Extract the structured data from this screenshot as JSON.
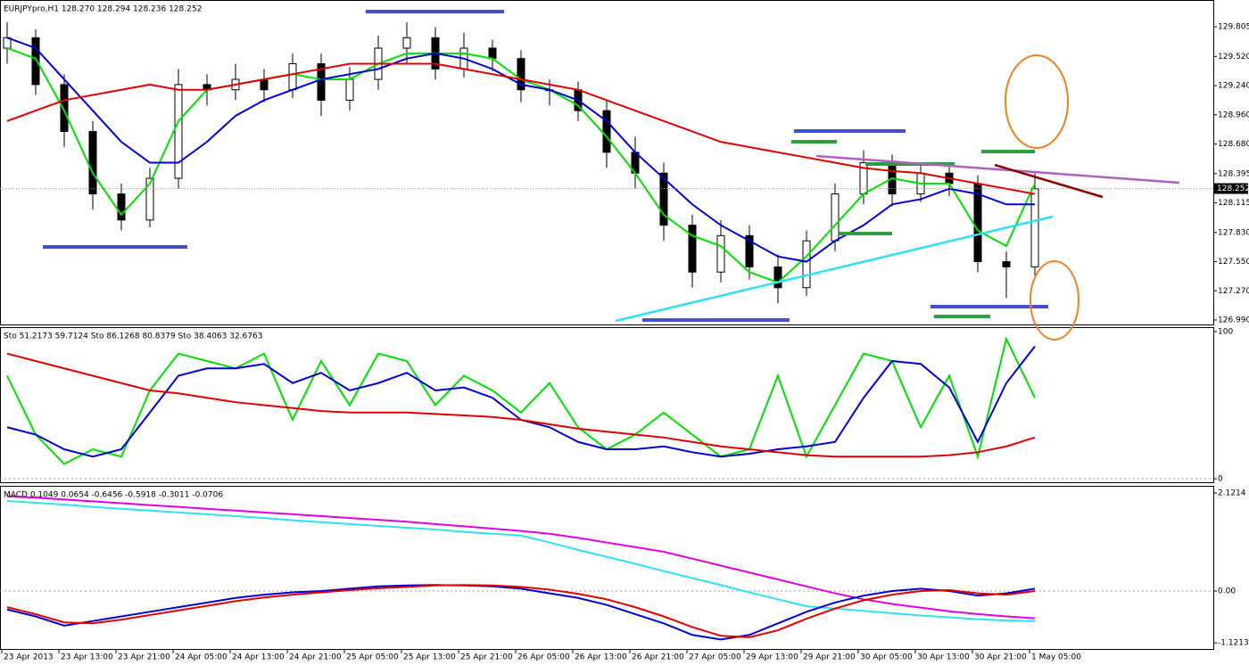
{
  "chart_data": [
    {
      "type": "candlestick",
      "title": "EURJPYpro,H1  128.270 128.294 128.236 128.252",
      "categories": [
        "23 Apr 2013",
        null,
        "23 Apr 13:00",
        null,
        "23 Apr 21:00",
        null,
        "24 Apr 05:00",
        null,
        "24 Apr 13:00",
        null,
        "24 Apr 21:00",
        null,
        "25 Apr 05:00",
        null,
        "25 Apr 13:00",
        null,
        "25 Apr 21:00",
        null,
        "26 Apr 05:00",
        null,
        "26 Apr 13:00",
        null,
        "26 Apr 21:00",
        null,
        "27 Apr 05:00",
        null,
        "29 Apr 13:00",
        null,
        "29 Apr 21:00",
        null,
        "30 Apr 05:00",
        null,
        "30 Apr 13:00",
        null,
        "30 Apr 21:00",
        null,
        "1 May 05:00"
      ],
      "open": [
        129.6,
        129.7,
        129.25,
        128.8,
        128.2,
        127.95,
        128.35,
        129.25,
        129.2,
        129.3,
        129.2,
        129.45,
        129.1,
        129.3,
        129.6,
        129.7,
        129.4,
        129.6,
        129.5,
        129.2,
        129.2,
        129.0,
        128.6,
        128.4,
        127.9,
        127.45,
        127.8,
        127.5,
        127.3,
        127.75,
        128.2,
        128.5,
        128.2,
        128.4,
        128.3,
        127.55,
        127.5
      ],
      "high": [
        129.85,
        129.78,
        129.35,
        128.9,
        128.3,
        128.45,
        129.4,
        129.35,
        129.45,
        129.4,
        129.55,
        129.55,
        129.42,
        129.72,
        129.85,
        129.8,
        129.75,
        129.68,
        129.58,
        129.3,
        129.28,
        129.1,
        128.75,
        128.5,
        128.0,
        127.95,
        127.9,
        127.62,
        127.85,
        128.3,
        128.62,
        128.58,
        128.48,
        128.46,
        128.38,
        127.65,
        128.4
      ],
      "low": [
        129.45,
        129.15,
        128.65,
        128.05,
        127.85,
        127.88,
        128.25,
        129.05,
        129.1,
        129.08,
        129.12,
        128.95,
        129.0,
        129.2,
        129.45,
        129.3,
        129.32,
        129.38,
        129.08,
        129.05,
        128.9,
        128.45,
        128.25,
        127.75,
        127.3,
        127.35,
        127.38,
        127.15,
        127.22,
        127.65,
        128.1,
        128.08,
        128.12,
        128.18,
        127.45,
        127.2,
        127.42
      ],
      "close": [
        129.7,
        129.25,
        128.8,
        128.2,
        127.95,
        128.35,
        129.25,
        129.2,
        129.3,
        129.2,
        129.45,
        129.1,
        129.3,
        129.6,
        129.7,
        129.4,
        129.6,
        129.5,
        129.2,
        129.2,
        129.0,
        128.6,
        128.4,
        127.9,
        127.45,
        127.8,
        127.5,
        127.3,
        127.75,
        128.2,
        128.5,
        128.2,
        128.4,
        128.3,
        127.55,
        127.5,
        128.25
      ],
      "series": [
        {
          "color": "#00e000",
          "values": [
            129.6,
            129.5,
            129.0,
            128.4,
            128.0,
            128.3,
            128.9,
            129.2,
            129.25,
            129.3,
            129.35,
            129.3,
            129.3,
            129.45,
            129.55,
            129.55,
            129.55,
            129.5,
            129.3,
            129.2,
            129.05,
            128.75,
            128.4,
            128.0,
            127.8,
            127.7,
            127.45,
            127.35,
            127.6,
            127.9,
            128.2,
            128.35,
            128.3,
            128.3,
            127.85,
            127.7,
            128.3
          ]
        },
        {
          "color": "#0000d0",
          "values": [
            129.7,
            129.6,
            129.3,
            129.0,
            128.7,
            128.5,
            128.5,
            128.7,
            128.95,
            129.1,
            129.2,
            129.3,
            129.35,
            129.4,
            129.5,
            129.55,
            129.5,
            129.4,
            129.25,
            129.2,
            129.1,
            128.9,
            128.6,
            128.35,
            128.1,
            127.9,
            127.75,
            127.6,
            127.55,
            127.75,
            127.9,
            128.1,
            128.15,
            128.25,
            128.2,
            128.1,
            128.1
          ]
        },
        {
          "color": "#e00000",
          "values": [
            128.9,
            129.0,
            129.1,
            129.15,
            129.2,
            129.25,
            129.2,
            129.2,
            129.25,
            129.3,
            129.35,
            129.4,
            129.45,
            129.45,
            129.45,
            129.45,
            129.4,
            129.35,
            129.3,
            129.25,
            129.2,
            129.1,
            129.0,
            128.9,
            128.8,
            128.7,
            128.65,
            128.6,
            128.55,
            128.5,
            128.45,
            128.42,
            128.4,
            128.35,
            128.3,
            128.25,
            128.2
          ]
        }
      ],
      "current_price": 128.252,
      "ylim": [
        126.947,
        130.062
      ],
      "yticks": [
        129.805,
        {
          "value": 129.52,
          "label": "129.520"
        },
        {
          "value": 129.24,
          "label": "129.240"
        },
        {
          "value": 128.96,
          "label": "128.960"
        },
        {
          "value": 128.68,
          "label": "128.680"
        },
        128.395,
        128.115,
        {
          "value": 127.83,
          "label": "127.830"
        },
        {
          "value": 127.55,
          "label": "127.550"
        },
        {
          "value": 127.27,
          "label": "127.270"
        },
        {
          "value": 126.99,
          "label": "126.990"
        }
      ]
    },
    {
      "type": "line",
      "title": "Sto 51.2173 59.7124  Sto 86.1268 80.8379  Sto 38.4063 32.6763",
      "series": [
        {
          "color": "#00e000",
          "values": [
            70,
            30,
            10,
            20,
            15,
            60,
            85,
            80,
            75,
            85,
            40,
            80,
            50,
            85,
            80,
            50,
            70,
            60,
            45,
            65,
            35,
            20,
            30,
            45,
            30,
            15,
            20,
            70,
            15,
            50,
            85,
            80,
            35,
            70,
            15,
            95,
            55
          ]
        },
        {
          "color": "#0000d0",
          "values": [
            35,
            30,
            20,
            15,
            20,
            45,
            70,
            75,
            75,
            78,
            65,
            72,
            60,
            65,
            72,
            60,
            62,
            55,
            40,
            35,
            25,
            20,
            20,
            22,
            18,
            15,
            17,
            20,
            22,
            25,
            55,
            80,
            78,
            62,
            25,
            65,
            90
          ]
        },
        {
          "color": "#e00000",
          "values": [
            85,
            80,
            75,
            70,
            65,
            60,
            58,
            55,
            52,
            50,
            48,
            46,
            45,
            45,
            45,
            44,
            43,
            42,
            40,
            37,
            34,
            32,
            30,
            28,
            25,
            22,
            20,
            18,
            16,
            15,
            15,
            15,
            15,
            16,
            18,
            22,
            28
          ]
        }
      ],
      "ylim": [
        -2.4,
        103
      ],
      "yticks": [
        100,
        0
      ]
    },
    {
      "type": "line",
      "title": "MACD 0.1049 0.0654 -0.6456 -0.5918 -0.3011 -0.0706",
      "series": [
        {
          "color": "#30e0f0",
          "values": [
            1.95,
            1.91,
            1.87,
            1.82,
            1.78,
            1.74,
            1.7,
            1.66,
            1.62,
            1.58,
            1.53,
            1.49,
            1.45,
            1.41,
            1.37,
            1.33,
            1.28,
            1.24,
            1.2,
            1.05,
            0.89,
            0.74,
            0.59,
            0.43,
            0.28,
            0.13,
            -0.03,
            -0.18,
            -0.33,
            -0.38,
            -0.43,
            -0.48,
            -0.53,
            -0.57,
            -0.61,
            -0.64,
            -0.65
          ]
        },
        {
          "color": "#e000e0",
          "values": [
            2.05,
            2.02,
            1.98,
            1.94,
            1.9,
            1.86,
            1.82,
            1.78,
            1.74,
            1.7,
            1.66,
            1.62,
            1.58,
            1.54,
            1.5,
            1.45,
            1.4,
            1.35,
            1.3,
            1.24,
            1.15,
            1.05,
            0.95,
            0.85,
            0.7,
            0.55,
            0.4,
            0.25,
            0.1,
            -0.05,
            -0.18,
            -0.28,
            -0.36,
            -0.44,
            -0.5,
            -0.55,
            -0.59
          ]
        },
        {
          "color": "#0000d0",
          "values": [
            -0.4,
            -0.55,
            -0.75,
            -0.65,
            -0.55,
            -0.45,
            -0.35,
            -0.25,
            -0.15,
            -0.08,
            -0.03,
            0.0,
            0.05,
            0.1,
            0.12,
            0.13,
            0.12,
            0.1,
            0.05,
            -0.05,
            -0.15,
            -0.3,
            -0.5,
            -0.7,
            -0.95,
            -1.05,
            -0.95,
            -0.7,
            -0.45,
            -0.25,
            -0.1,
            0.0,
            0.05,
            0.0,
            -0.1,
            -0.05,
            0.05
          ]
        },
        {
          "color": "#e00000",
          "values": [
            -0.35,
            -0.5,
            -0.68,
            -0.7,
            -0.62,
            -0.52,
            -0.42,
            -0.32,
            -0.22,
            -0.14,
            -0.08,
            -0.03,
            0.02,
            0.06,
            0.09,
            0.12,
            0.13,
            0.12,
            0.09,
            0.03,
            -0.06,
            -0.18,
            -0.35,
            -0.55,
            -0.78,
            -0.97,
            -1.0,
            -0.85,
            -0.6,
            -0.38,
            -0.2,
            -0.08,
            0.0,
            0.02,
            -0.05,
            -0.08,
            0.0
          ]
        }
      ],
      "ylim": [
        -1.254,
        2.276
      ],
      "yticks": [
        2.1214,
        {
          "value": 0,
          "label": "0.00"
        },
        -1.1213
      ]
    }
  ]
}
